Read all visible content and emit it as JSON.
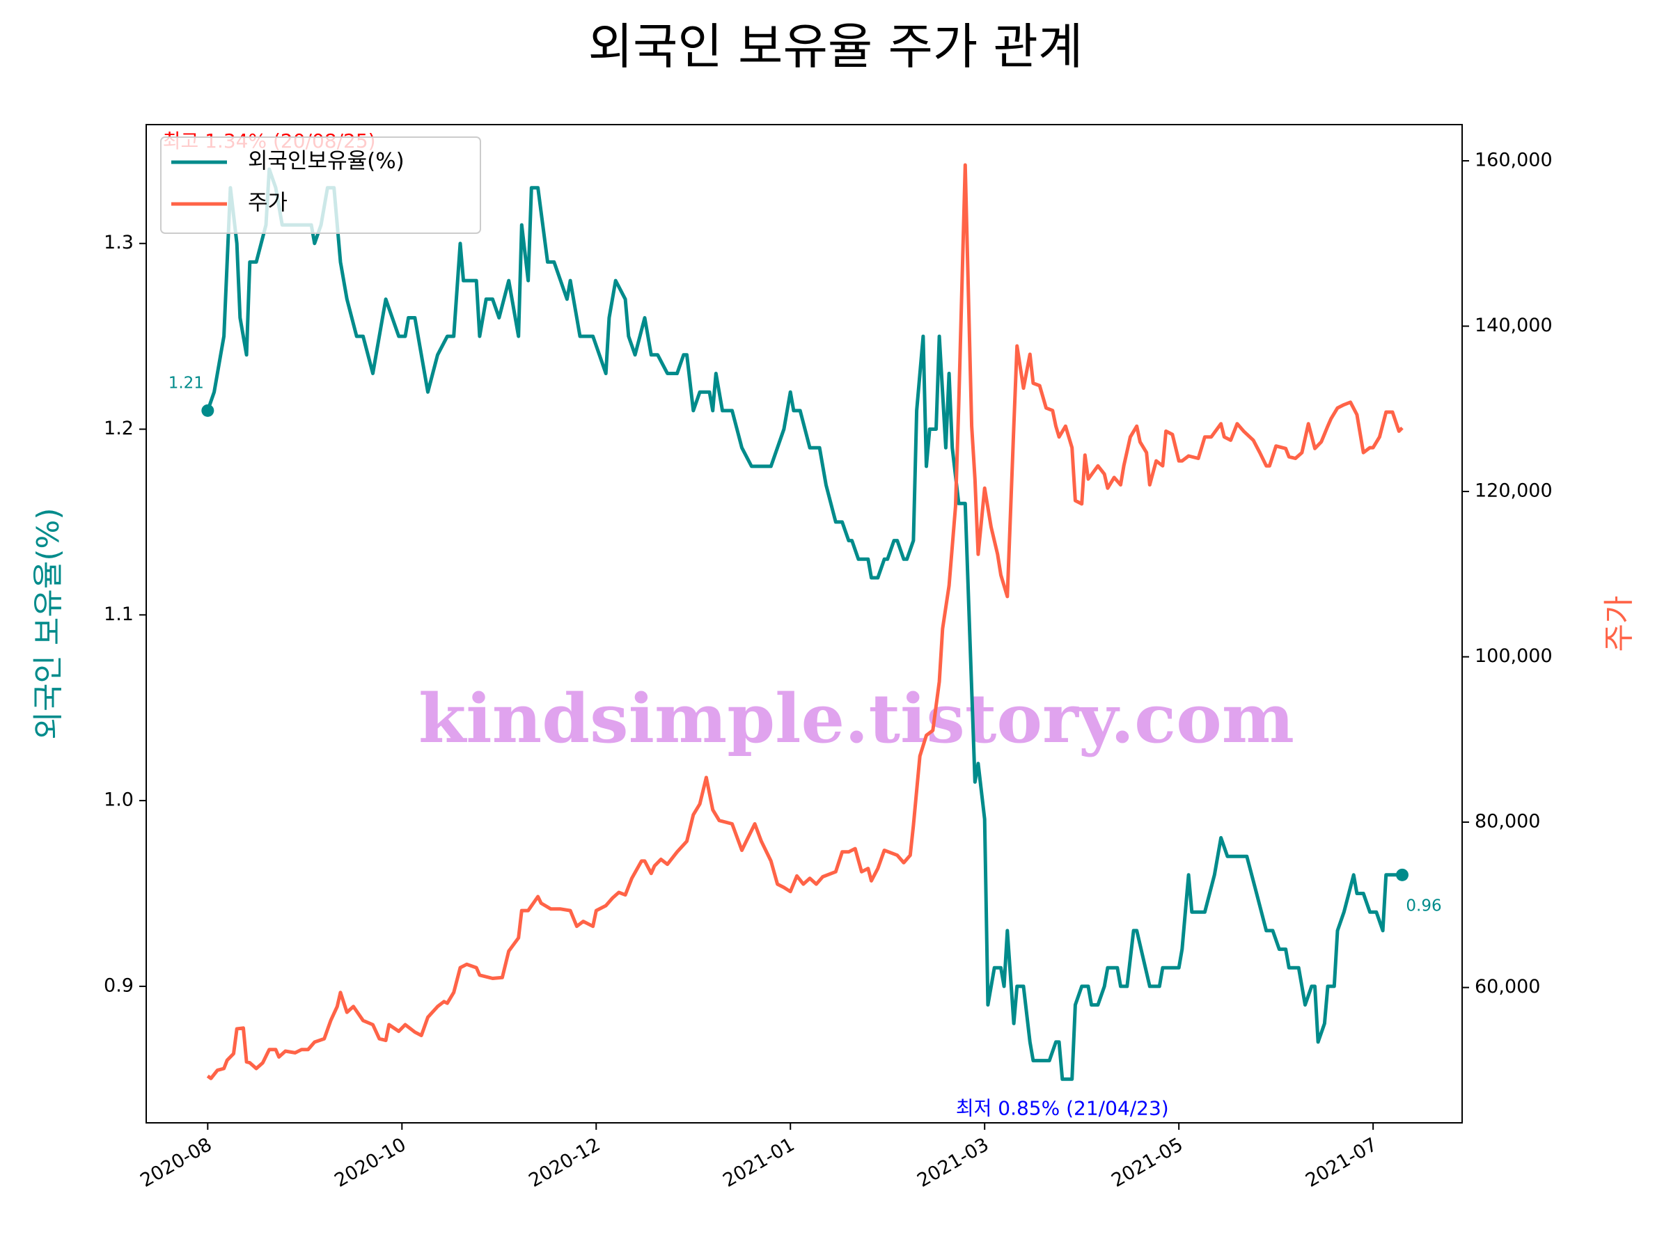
{
  "chart_data": {
    "type": "line",
    "title": "외국인 보유율 주가 관계",
    "ylabel": "외국인 보유율(%)",
    "y2label": "주가",
    "xlim": [
      -19,
      387.5
    ],
    "xticks": [
      {
        "value": 0,
        "label": "2020-08"
      },
      {
        "value": 60,
        "label": "2020-10"
      },
      {
        "value": 120,
        "label": "2020-12"
      },
      {
        "value": 180,
        "label": "2021-01"
      },
      {
        "value": 240,
        "label": "2021-03"
      },
      {
        "value": 300,
        "label": "2021-05"
      },
      {
        "value": 360,
        "label": "2021-07"
      }
    ],
    "ylim": [
      0.8265,
      1.364
    ],
    "yticks": [
      0.9,
      {
        "value": 1,
        "label": "1.0"
      },
      1.1,
      1.2,
      1.3
    ],
    "y2lim": [
      43630,
      164380
    ],
    "y2ticks": [
      {
        "value": 60000,
        "label": "60,000"
      },
      {
        "value": 80000,
        "label": "80,000"
      },
      {
        "value": 100000,
        "label": "100,000"
      },
      {
        "value": 120000,
        "label": "120,000"
      },
      {
        "value": 140000,
        "label": "140,000"
      },
      {
        "value": 160000,
        "label": "160,000"
      }
    ],
    "grid": false,
    "legend": "upper left",
    "series": [
      {
        "name": "외국인보유율(%)",
        "color": "#008b8b",
        "axis": "y",
        "x": [
          0,
          2,
          4,
          5,
          7,
          9,
          10,
          12,
          13,
          15,
          18,
          19,
          21,
          23,
          27,
          32,
          33,
          35,
          37,
          39,
          41,
          43,
          46,
          48,
          51,
          52,
          54,
          55,
          59,
          61,
          62,
          64,
          66,
          68,
          71,
          74,
          76,
          78,
          79,
          83,
          84,
          86,
          88,
          90,
          93,
          96,
          97,
          99,
          100,
          102,
          105,
          107,
          109,
          111,
          112,
          114,
          115,
          119,
          123,
          124,
          126,
          129,
          130,
          132,
          135,
          137,
          139,
          142,
          145,
          147,
          148,
          150,
          152,
          155,
          156,
          157,
          159,
          162,
          165,
          168,
          174,
          176,
          178,
          180,
          181,
          183,
          186,
          189,
          191,
          194,
          196,
          198,
          199,
          201,
          204,
          205,
          207,
          209,
          210,
          212,
          213,
          215,
          216,
          218,
          219,
          221,
          222,
          223,
          225,
          226,
          228,
          229,
          230,
          232,
          234,
          236,
          237,
          238,
          240,
          241,
          243,
          245,
          246,
          247,
          249,
          250,
          252,
          254,
          255,
          260,
          262,
          263,
          264,
          267,
          268,
          270,
          272,
          273,
          275,
          277,
          278,
          281,
          282,
          284,
          286,
          287,
          291,
          294,
          295,
          300,
          301,
          303,
          304,
          308,
          311,
          313,
          315,
          321,
          324,
          327,
          329,
          331,
          333,
          334,
          337,
          338,
          339,
          341,
          342,
          343,
          345,
          346,
          348,
          349,
          351,
          354,
          355,
          357,
          359,
          361,
          363,
          364,
          367,
          369
        ],
        "values": [
          1.21,
          1.22,
          1.24,
          1.25,
          1.33,
          1.3,
          1.26,
          1.24,
          1.29,
          1.29,
          1.31,
          1.34,
          1.33,
          1.31,
          1.31,
          1.31,
          1.3,
          1.31,
          1.33,
          1.33,
          1.29,
          1.27,
          1.25,
          1.25,
          1.23,
          1.24,
          1.26,
          1.27,
          1.25,
          1.25,
          1.26,
          1.26,
          1.24,
          1.22,
          1.24,
          1.25,
          1.25,
          1.3,
          1.28,
          1.28,
          1.25,
          1.27,
          1.27,
          1.26,
          1.28,
          1.25,
          1.31,
          1.28,
          1.33,
          1.33,
          1.29,
          1.29,
          1.28,
          1.27,
          1.28,
          1.26,
          1.25,
          1.25,
          1.23,
          1.26,
          1.28,
          1.27,
          1.25,
          1.24,
          1.26,
          1.24,
          1.24,
          1.23,
          1.23,
          1.24,
          1.24,
          1.21,
          1.22,
          1.22,
          1.21,
          1.23,
          1.21,
          1.21,
          1.19,
          1.18,
          1.18,
          1.19,
          1.2,
          1.22,
          1.21,
          1.21,
          1.19,
          1.19,
          1.17,
          1.15,
          1.15,
          1.14,
          1.14,
          1.13,
          1.13,
          1.12,
          1.12,
          1.13,
          1.13,
          1.14,
          1.14,
          1.13,
          1.13,
          1.14,
          1.21,
          1.25,
          1.18,
          1.2,
          1.2,
          1.25,
          1.19,
          1.23,
          1.19,
          1.16,
          1.16,
          1.06,
          1.01,
          1.02,
          0.99,
          0.89,
          0.91,
          0.91,
          0.9,
          0.93,
          0.88,
          0.9,
          0.9,
          0.87,
          0.86,
          0.86,
          0.87,
          0.87,
          0.85,
          0.85,
          0.89,
          0.9,
          0.9,
          0.89,
          0.89,
          0.9,
          0.91,
          0.91,
          0.9,
          0.9,
          0.93,
          0.93,
          0.9,
          0.9,
          0.91,
          0.91,
          0.92,
          0.96,
          0.94,
          0.94,
          0.96,
          0.98,
          0.97,
          0.97,
          0.95,
          0.93,
          0.93,
          0.92,
          0.92,
          0.91,
          0.91,
          0.9,
          0.89,
          0.9,
          0.9,
          0.87,
          0.88,
          0.9,
          0.9,
          0.93,
          0.94,
          0.96,
          0.95,
          0.95,
          0.94,
          0.94,
          0.93,
          0.96,
          0.96,
          0.96
        ]
      },
      {
        "name": "주가",
        "color": "#ff6347",
        "axis": "y2",
        "x": [
          0,
          1,
          3,
          5,
          6,
          8,
          9,
          11,
          12,
          13,
          15,
          17,
          19,
          21,
          22,
          24,
          27,
          29,
          31,
          33,
          36,
          38,
          40,
          41,
          43,
          45,
          48,
          51,
          53,
          55,
          56,
          59,
          61,
          64,
          66,
          68,
          71,
          73,
          74,
          76,
          78,
          80,
          83,
          84,
          88,
          91,
          93,
          96,
          97,
          99,
          102,
          103,
          106,
          109,
          112,
          114,
          116,
          119,
          120,
          123,
          125,
          127,
          129,
          131,
          134,
          135,
          137,
          138,
          140,
          142,
          145,
          148,
          150,
          152,
          154,
          156,
          158,
          162,
          165,
          166,
          169,
          171,
          174,
          176,
          178,
          180,
          182,
          184,
          186,
          188,
          190,
          194,
          196,
          198,
          200,
          202,
          204,
          205,
          207,
          209,
          213,
          215,
          217,
          218,
          220,
          222,
          224,
          226,
          227,
          229,
          231,
          232,
          234,
          236,
          237,
          238,
          240,
          242,
          244,
          245,
          247,
          249,
          250,
          252,
          254,
          255,
          257,
          259,
          261,
          262,
          263,
          265,
          267,
          268,
          270,
          271,
          272,
          275,
          277,
          278,
          280,
          282,
          283,
          285,
          287,
          288,
          290,
          291,
          293,
          295,
          296,
          298,
          300,
          301,
          303,
          306,
          308,
          310,
          313,
          314,
          316,
          318,
          320,
          323,
          325,
          327,
          328,
          330,
          333,
          334,
          336,
          338,
          340,
          342,
          344,
          346,
          347,
          349,
          351,
          353,
          355,
          357,
          359,
          360,
          362,
          364,
          366,
          368,
          369
        ],
        "values": [
          49300,
          49000,
          50000,
          50200,
          51200,
          52000,
          55000,
          55100,
          51000,
          50900,
          50200,
          50900,
          52500,
          52500,
          51600,
          52300,
          52100,
          52500,
          52500,
          53400,
          53800,
          56000,
          57700,
          59400,
          57000,
          57700,
          56000,
          55500,
          53800,
          53600,
          55500,
          54700,
          55500,
          54600,
          54200,
          56400,
          57700,
          58300,
          58100,
          59400,
          62400,
          62800,
          62400,
          61500,
          61100,
          61200,
          64400,
          66000,
          69300,
          69300,
          71000,
          70200,
          69500,
          69500,
          69300,
          67400,
          68000,
          67400,
          69300,
          69900,
          70800,
          71500,
          71200,
          73200,
          75300,
          75300,
          73800,
          74700,
          75500,
          74900,
          76400,
          77700,
          80900,
          82200,
          85400,
          81500,
          80200,
          79800,
          76600,
          77400,
          79800,
          77700,
          75300,
          72500,
          72100,
          71600,
          73500,
          72500,
          73200,
          72500,
          73400,
          74000,
          76400,
          76400,
          76800,
          74000,
          74400,
          72900,
          74400,
          76600,
          76000,
          75100,
          76000,
          79600,
          88000,
          90500,
          91100,
          97000,
          103400,
          108600,
          118200,
          130500,
          159500,
          127900,
          121500,
          112400,
          120400,
          115700,
          112400,
          109900,
          107300,
          127900,
          137600,
          132500,
          136600,
          133100,
          132800,
          130100,
          129800,
          127900,
          126600,
          127900,
          125300,
          118900,
          118500,
          124400,
          121500,
          123100,
          122100,
          120400,
          121700,
          120800,
          123100,
          126600,
          127900,
          126000,
          124700,
          120800,
          123700,
          123100,
          127300,
          126900,
          123700,
          123700,
          124300,
          124000,
          126600,
          126600,
          128200,
          126600,
          126200,
          128200,
          127300,
          126200,
          124700,
          123100,
          123100,
          125500,
          125200,
          124200,
          124000,
          124700,
          128200,
          125200,
          126000,
          127900,
          128800,
          130100,
          130500,
          130800,
          129300,
          124700,
          125300,
          125300,
          126600,
          129600,
          129600,
          127300,
          127700
        ]
      }
    ],
    "annotations": {
      "max_label": {
        "text": "최고 1.34% (20/08/25)",
        "color": "red"
      },
      "min_label": {
        "text": "최저 0.85% (21/04/23)",
        "color": "blue"
      },
      "start_label": {
        "text": "1.21",
        "color": "#008b8b"
      },
      "end_label": {
        "text": "0.96",
        "color": "#008b8b"
      }
    },
    "watermark": {
      "text": "kindsimple.tistory.com",
      "color": "#e0a3ee"
    }
  }
}
